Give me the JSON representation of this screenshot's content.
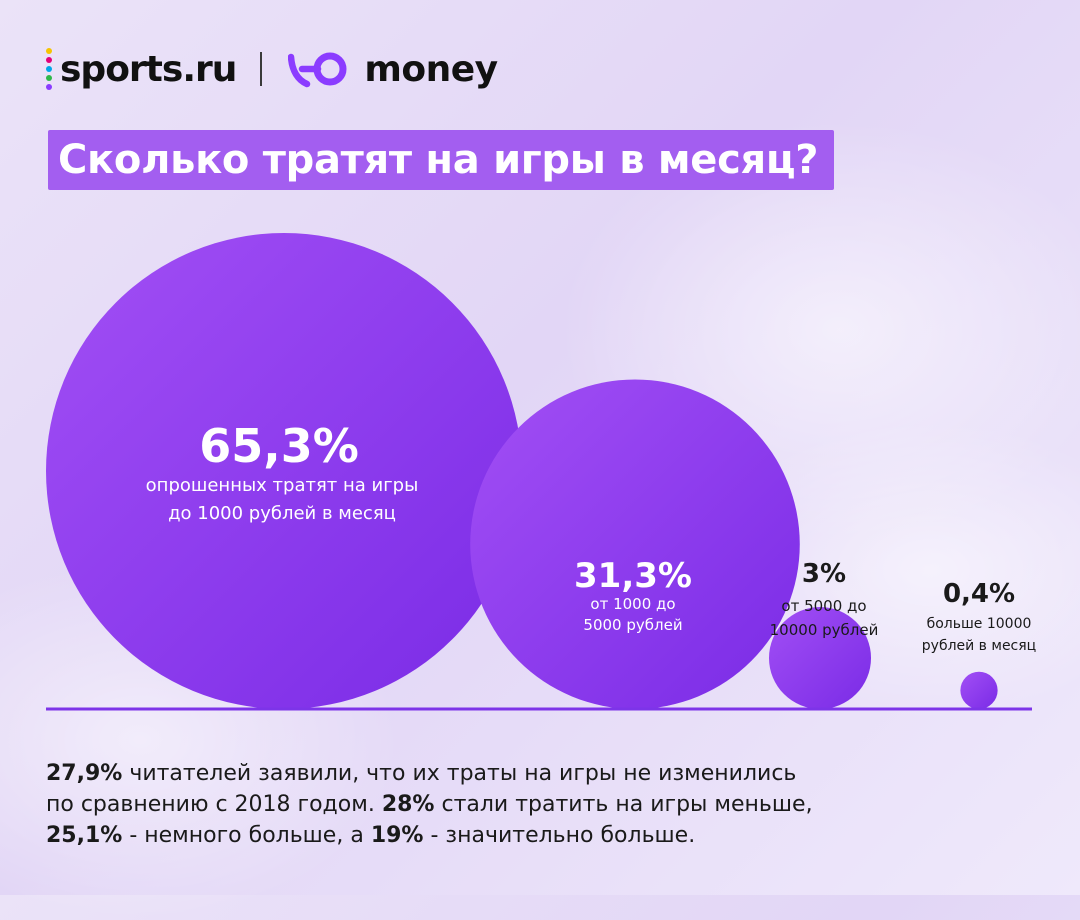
{
  "header": {
    "logo_sports": "sports.ru",
    "logo_money": "money",
    "dot_colors": [
      "#f6c400",
      "#e3007a",
      "#00a6e8",
      "#2fb84a",
      "#8a3cff"
    ],
    "brand_purple": "#8b3cff"
  },
  "title": "Сколько тратят на игры в месяц?",
  "chart_data": {
    "type": "bubble",
    "title": "Сколько тратят на игры в месяц?",
    "unit": "%",
    "categories": [
      "до 1000 рублей",
      "от 1000 до 5000 рублей",
      "от 5000 до 10000 рублей",
      "больше 10000 рублей"
    ],
    "values": [
      65.3,
      31.3,
      3,
      0.4
    ],
    "labels": [
      {
        "value": "65,3%",
        "caption": [
          "опрошенных тратят на игры",
          "до 1000 рублей в месяц"
        ],
        "inside": true
      },
      {
        "value": "31,3%",
        "caption": [
          "от 1000 до",
          "5000 рублей"
        ],
        "inside": true
      },
      {
        "value": "3%",
        "caption": [
          "от 5000 до",
          "10000 рублей"
        ],
        "inside": false
      },
      {
        "value": "0,4%",
        "caption": [
          "больше 10000",
          "рублей в месяц"
        ],
        "inside": false
      }
    ],
    "colors": {
      "bubble_light": "#a24ff5",
      "bubble_dark": "#7a2be6",
      "baseline": "#7d34e8"
    }
  },
  "footer": {
    "line1": [
      {
        "text": "27,9%",
        "bold": true
      },
      {
        "text": " читателей заявили, что их траты на игры не изменились",
        "bold": false
      }
    ],
    "line2": [
      {
        "text": "по сравнению с 2018 годом. ",
        "bold": false
      },
      {
        "text": "28%",
        "bold": true
      },
      {
        "text": " стали тратить на игры меньше,",
        "bold": false
      }
    ],
    "line3": [
      {
        "text": "25,1%",
        "bold": true
      },
      {
        "text": " - немного больше, а ",
        "bold": false
      },
      {
        "text": "19%",
        "bold": true
      },
      {
        "text": " - значительно больше.",
        "bold": false
      }
    ]
  }
}
